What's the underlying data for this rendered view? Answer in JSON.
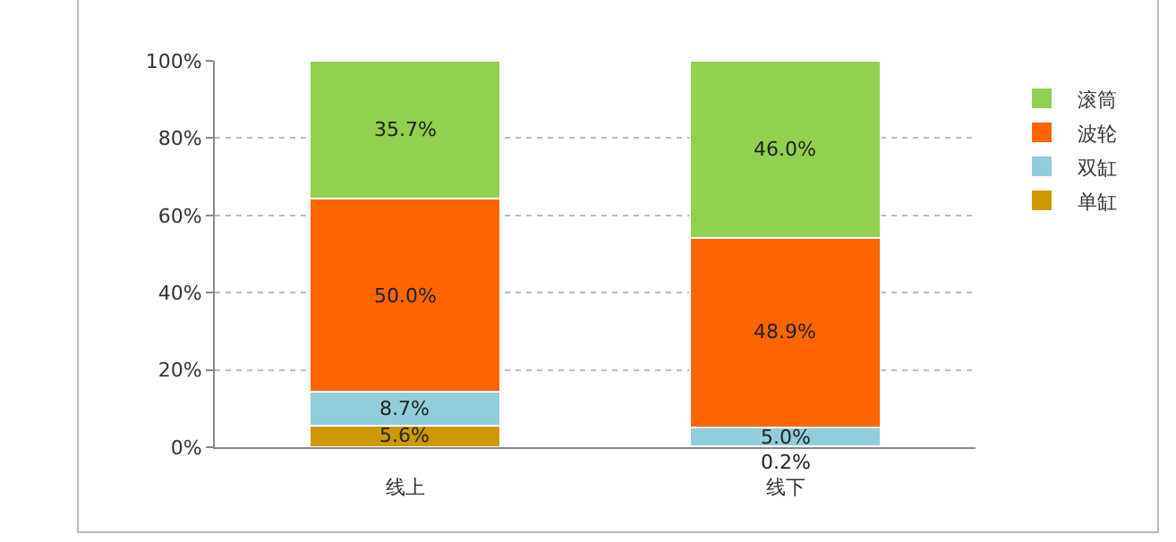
{
  "chart_data": {
    "type": "bar",
    "stacked": true,
    "categories": [
      "线上",
      "线下"
    ],
    "series": [
      {
        "name": "单缸",
        "color": "#cc9900",
        "values": [
          5.6,
          0.2
        ],
        "value_labels": [
          "5.6%",
          "0.2%"
        ]
      },
      {
        "name": "双缸",
        "color": "#92cddc",
        "values": [
          8.7,
          5.0
        ],
        "value_labels": [
          "8.7%",
          "5.0%"
        ]
      },
      {
        "name": "波轮",
        "color": "#ff6600",
        "values": [
          50.0,
          48.9
        ],
        "value_labels": [
          "50.0%",
          "48.9%"
        ]
      },
      {
        "name": "滚筒",
        "color": "#92d050",
        "values": [
          35.7,
          46.0
        ],
        "value_labels": [
          "35.7%",
          "46.0%"
        ]
      }
    ],
    "ylim": [
      0,
      100
    ],
    "yticks": [
      {
        "value": 0,
        "label": "0%"
      },
      {
        "value": 20,
        "label": "20%"
      },
      {
        "value": 40,
        "label": "40%"
      },
      {
        "value": 60,
        "label": "60%"
      },
      {
        "value": 80,
        "label": "80%"
      },
      {
        "value": 100,
        "label": "100%"
      }
    ],
    "grid": "y",
    "legend": "right"
  }
}
